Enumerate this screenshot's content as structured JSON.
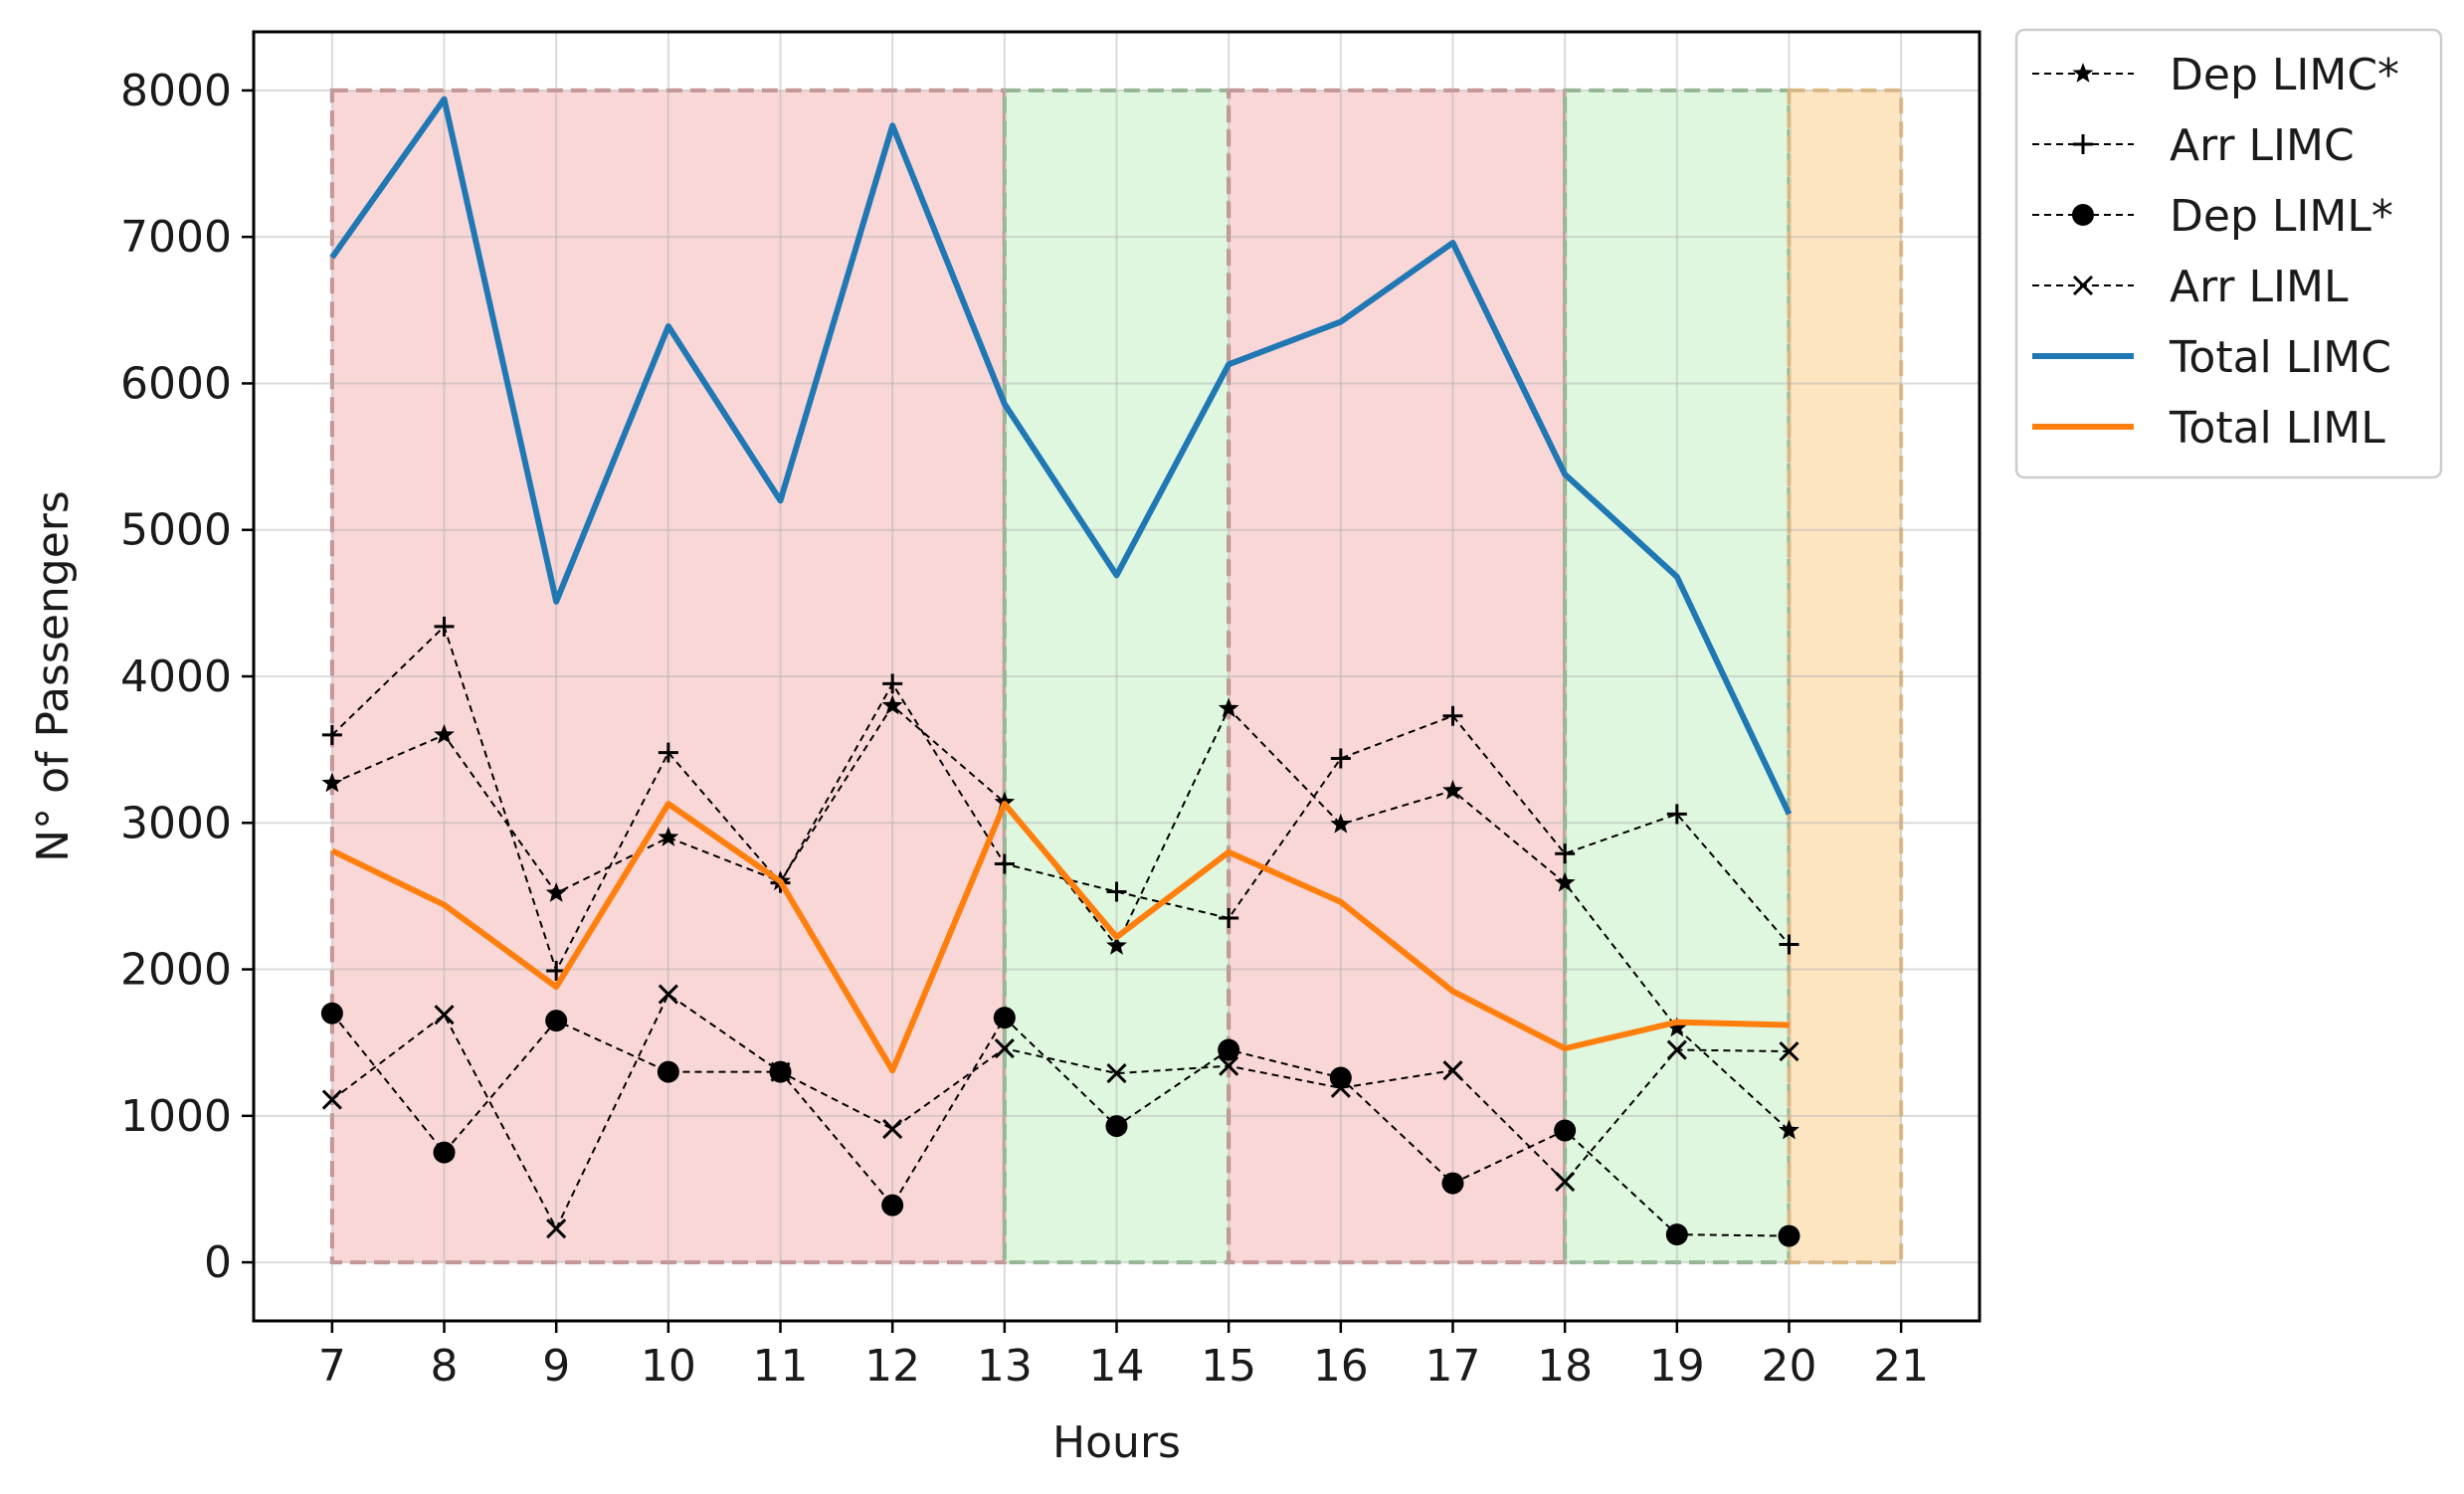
{
  "chart_data": {
    "type": "line",
    "xlabel": "Hours",
    "ylabel": "N° of Passengers",
    "xlim": [
      6.3,
      21.7
    ],
    "ylim": [
      -400,
      8400
    ],
    "xticks": [
      7,
      8,
      9,
      10,
      11,
      12,
      13,
      14,
      15,
      16,
      17,
      18,
      19,
      20,
      21
    ],
    "xtick_labels": [
      "7",
      "8",
      "9",
      "10",
      "11",
      "12",
      "13",
      "14",
      "15",
      "16",
      "17",
      "18",
      "19",
      "20",
      "21"
    ],
    "yticks": [
      0,
      1000,
      2000,
      3000,
      4000,
      5000,
      6000,
      7000,
      8000
    ],
    "ytick_labels": [
      "0",
      "1000",
      "2000",
      "3000",
      "4000",
      "5000",
      "6000",
      "7000",
      "8000"
    ],
    "grid": true,
    "legend_position": "outside-top-right",
    "x": [
      7,
      8,
      9,
      10,
      11,
      12,
      13,
      14,
      15,
      16,
      17,
      18,
      19,
      20
    ],
    "series": [
      {
        "name": "Dep LIMC*",
        "style": "dashed",
        "marker": "star",
        "color": "#000000",
        "values": [
          3270,
          3600,
          2520,
          2900,
          2600,
          3800,
          3140,
          2160,
          3780,
          2990,
          3220,
          2590,
          1600,
          900
        ]
      },
      {
        "name": "Arr LIMC",
        "style": "dashed",
        "marker": "plus",
        "color": "#000000",
        "values": [
          3600,
          4340,
          1990,
          3480,
          2590,
          3950,
          2720,
          2530,
          2350,
          3440,
          3730,
          2790,
          3060,
          2170
        ]
      },
      {
        "name": "Dep LIML*",
        "style": "dashed",
        "marker": "circle",
        "color": "#000000",
        "values": [
          1700,
          750,
          1650,
          1300,
          1300,
          390,
          1670,
          930,
          1450,
          1260,
          540,
          900,
          190,
          180
        ]
      },
      {
        "name": "Arr LIML",
        "style": "dashed",
        "marker": "x",
        "color": "#000000",
        "values": [
          1110,
          1690,
          230,
          1830,
          1300,
          910,
          1460,
          1290,
          1340,
          1190,
          1310,
          550,
          1450,
          1440
        ]
      },
      {
        "name": "Total LIMC",
        "style": "solid",
        "marker": "none",
        "color": "#1f77b4",
        "values": [
          6860,
          7940,
          4510,
          6390,
          5200,
          7760,
          5860,
          4690,
          6130,
          6420,
          6960,
          5380,
          4680,
          3060
        ]
      },
      {
        "name": "Total LIML",
        "style": "solid",
        "marker": "none",
        "color": "#ff7f0e",
        "values": [
          2810,
          2440,
          1880,
          3130,
          2600,
          1310,
          3130,
          2220,
          2800,
          2460,
          1850,
          1460,
          1640,
          1620
        ]
      }
    ],
    "regions": [
      {
        "x0": 7,
        "x1": 13,
        "y0": 0,
        "y1": 8000,
        "fill": "#f7bcbc",
        "edge": "#c98f8f"
      },
      {
        "x0": 13,
        "x1": 15,
        "y0": 0,
        "y1": 8000,
        "fill": "#c9f2c9",
        "edge": "#8fb88f"
      },
      {
        "x0": 15,
        "x1": 18,
        "y0": 0,
        "y1": 8000,
        "fill": "#f7bcbc",
        "edge": "#c98f8f"
      },
      {
        "x0": 18,
        "x1": 20,
        "y0": 0,
        "y1": 8000,
        "fill": "#c9f2c9",
        "edge": "#8fb88f"
      },
      {
        "x0": 20,
        "x1": 21,
        "y0": 0,
        "y1": 8000,
        "fill": "#fcd49a",
        "edge": "#e8bb7a"
      }
    ]
  }
}
